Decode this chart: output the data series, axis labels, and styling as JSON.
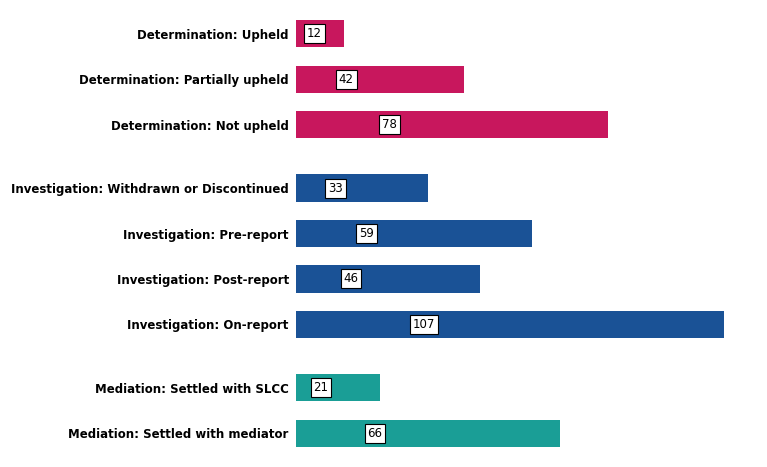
{
  "categories": [
    "Determination: Upheld",
    "Determination: Partially upheld",
    "Determination: Not upheld",
    "Investigation: Withdrawn or Discontinued",
    "Investigation: Pre-report",
    "Investigation: Post-report",
    "Investigation: On-report",
    "Mediation: Settled with SLCC",
    "Mediation: Settled with mediator"
  ],
  "values": [
    12,
    42,
    78,
    33,
    59,
    46,
    107,
    21,
    66
  ],
  "colors": [
    "#c8175d",
    "#c8175d",
    "#c8175d",
    "#1a5296",
    "#1a5296",
    "#1a5296",
    "#1a5296",
    "#1a9e96",
    "#1a9e96"
  ],
  "y_positions": [
    0,
    1,
    2,
    3.4,
    4.4,
    5.4,
    6.4,
    7.8,
    8.8
  ],
  "bar_height": 0.6,
  "label_fontsize": 8.5,
  "tick_fontsize": 8.5,
  "background_color": "#ffffff",
  "figsize": [
    7.67,
    4.67
  ],
  "dpi": 100,
  "xlim": [
    0,
    115
  ]
}
